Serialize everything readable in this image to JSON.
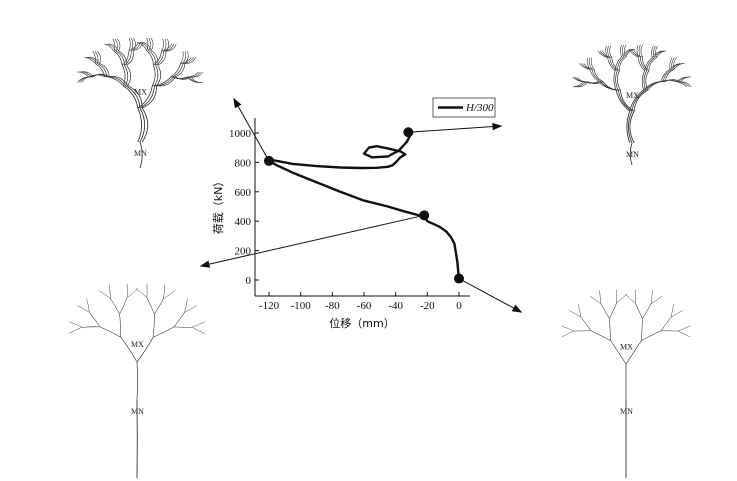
{
  "chart_data": {
    "type": "line",
    "xlabel": "位移（mm）",
    "ylabel": "荷载（kN）",
    "xlim": [
      -130,
      5
    ],
    "ylim": [
      -50,
      1100
    ],
    "x_ticks": [
      -120,
      -100,
      -80,
      -60,
      -40,
      -20,
      0
    ],
    "y_ticks": [
      0,
      200,
      400,
      600,
      800,
      1000
    ],
    "legend_position": "top-right",
    "series": [
      {
        "name": "H/300",
        "color": "#111111",
        "x": [
          0,
          -0.5,
          -1,
          -2,
          -3,
          -5,
          -8,
          -12,
          -16,
          -20,
          -22,
          -26,
          -35,
          -45,
          -60,
          -75,
          -90,
          -105,
          -115,
          -120,
          -120,
          -115,
          -105,
          -90,
          -75,
          -62,
          -52,
          -45,
          -42,
          -40,
          -37,
          -34,
          -37,
          -45,
          -52,
          -57,
          -60,
          -55,
          -45,
          -38,
          -33,
          -30
        ],
        "y": [
          10,
          60,
          120,
          190,
          250,
          290,
          330,
          360,
          380,
          400,
          430,
          442,
          468,
          500,
          540,
          600,
          665,
          730,
          780,
          810,
          820,
          810,
          790,
          775,
          765,
          762,
          763,
          770,
          780,
          800,
          835,
          855,
          875,
          895,
          910,
          900,
          860,
          835,
          840,
          880,
          940,
          1000
        ]
      }
    ],
    "markers": [
      {
        "x": 0,
        "y": 10
      },
      {
        "x": -22,
        "y": 440
      },
      {
        "x": -120,
        "y": 810
      },
      {
        "x": -32,
        "y": 1005
      }
    ]
  },
  "snapshots": [
    {
      "mn_label": "MN",
      "mx_label": "MX"
    },
    {
      "mn_label": "MN",
      "mx_label": "MX"
    },
    {
      "mn_label": "MN",
      "mx_label": "MX"
    },
    {
      "mn_label": "MN",
      "mx_label": "MX"
    }
  ]
}
